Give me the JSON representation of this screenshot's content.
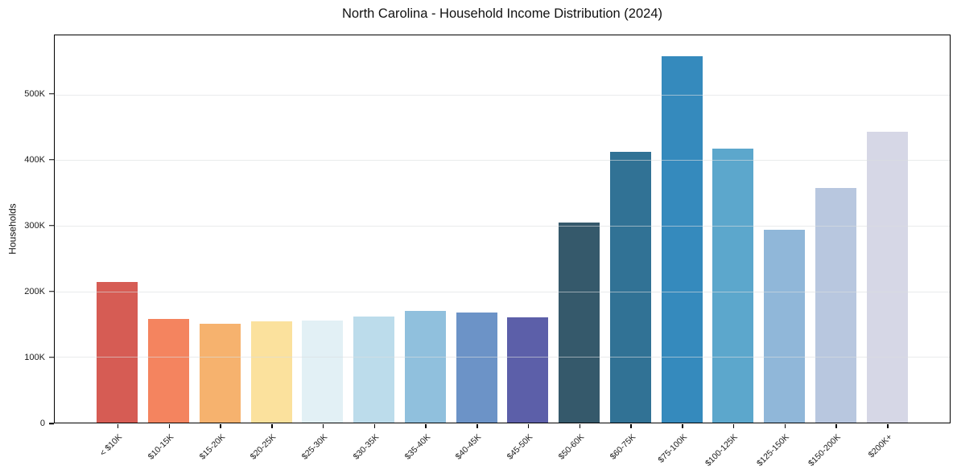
{
  "chart_data": {
    "type": "bar",
    "title": "North Carolina - Household Income Distribution (2024)",
    "xlabel": "",
    "ylabel": "Households",
    "ylim": [
      0,
      590000
    ],
    "grid": true,
    "legend": false,
    "categories": [
      "< $10K",
      "$10-15K",
      "$15-20K",
      "$20-25K",
      "$25-30K",
      "$30-35K",
      "$35-40K",
      "$40-45K",
      "$45-50K",
      "$50-60K",
      "$60-75K",
      "$75-100K",
      "$100-125K",
      "$125-150K",
      "$150-200K",
      "$200K+"
    ],
    "values": [
      214000,
      158000,
      150000,
      154000,
      156000,
      162000,
      170000,
      168000,
      160000,
      305000,
      413000,
      558000,
      418000,
      294000,
      357000,
      443000
    ],
    "bar_colors": [
      "#d65c54",
      "#f4845f",
      "#f6b26e",
      "#fbe19d",
      "#e2f0f5",
      "#bcdceb",
      "#90c0dd",
      "#6c93c7",
      "#5c5fa9",
      "#35596b",
      "#317295",
      "#358abd",
      "#5ca7cc",
      "#90b7d9",
      "#b8c7df",
      "#d6d7e6"
    ],
    "y_ticks": [
      {
        "value": 0,
        "label": "0"
      },
      {
        "value": 100000,
        "label": "100K"
      },
      {
        "value": 200000,
        "label": "200K"
      },
      {
        "value": 300000,
        "label": "300K"
      },
      {
        "value": 400000,
        "label": "400K"
      },
      {
        "value": 500000,
        "label": "500K"
      }
    ]
  },
  "colors": {
    "background": "#ffffff",
    "spine": "#000000",
    "grid": "#dadde0"
  }
}
